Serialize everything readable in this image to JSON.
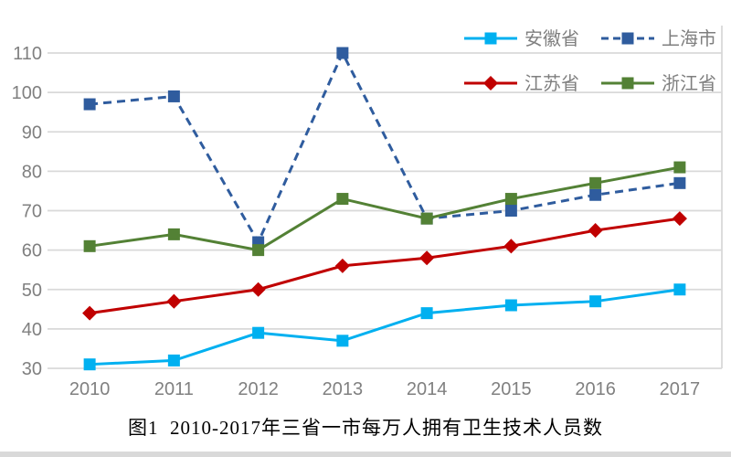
{
  "caption": "图1  2010-2017年三省一市每万人拥有卫生技术人员数",
  "chart_data": {
    "type": "line",
    "title": "图1  2010-2017年三省一市每万人拥有卫生技术人员数",
    "xlabel": "",
    "ylabel": "",
    "categories": [
      "2010",
      "2011",
      "2012",
      "2013",
      "2014",
      "2015",
      "2016",
      "2017"
    ],
    "series": [
      {
        "name": "安徽省",
        "color": "#00B0F0",
        "marker": "square",
        "line_style": "solid",
        "values": [
          31,
          32,
          39,
          37,
          44,
          46,
          47,
          50
        ]
      },
      {
        "name": "上海市",
        "color": "#2F5C9E",
        "marker": "square",
        "line_style": "dashed",
        "values": [
          97,
          99,
          62,
          110,
          68,
          70,
          74,
          77
        ]
      },
      {
        "name": "江苏省",
        "color": "#C00000",
        "marker": "diamond",
        "line_style": "solid",
        "values": [
          44,
          47,
          50,
          56,
          58,
          61,
          65,
          68
        ]
      },
      {
        "name": "浙江省",
        "color": "#538135",
        "marker": "square",
        "line_style": "solid",
        "values": [
          61,
          64,
          60,
          73,
          68,
          73,
          77,
          81
        ]
      }
    ],
    "ylim": [
      30,
      110
    ],
    "ytick_step": 10,
    "yticks": [
      "30",
      "40",
      "50",
      "60",
      "70",
      "80",
      "90",
      "100",
      "110"
    ],
    "grid": "horizontal gridlines on",
    "legend_position": "top-right, 2 columns x 2 rows",
    "legend_order": [
      "安徽省",
      "上海市",
      "江苏省",
      "浙江省"
    ],
    "axis_text_color": "#808080",
    "legend_text_color": "#7F7F7F",
    "gridline_color": "#D9D9D9"
  }
}
